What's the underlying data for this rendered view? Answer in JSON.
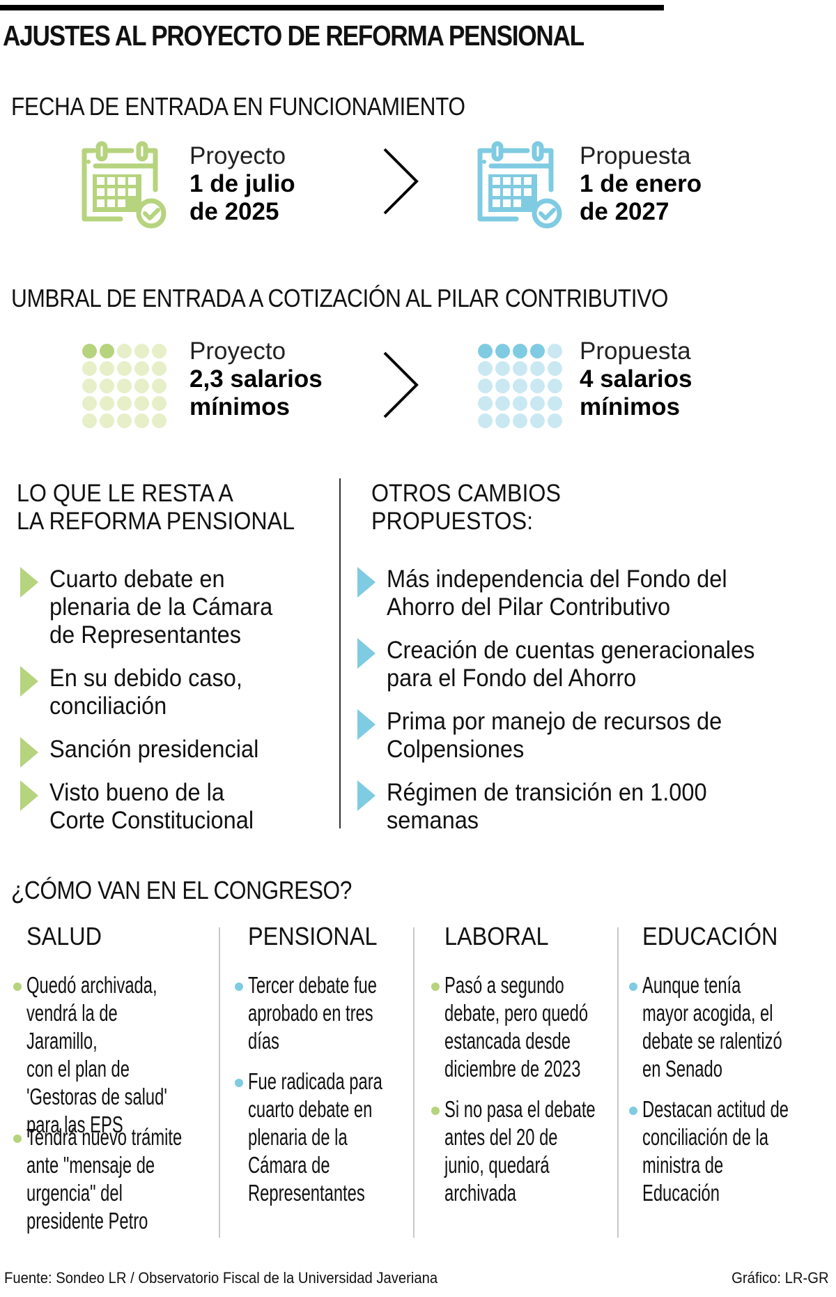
{
  "title": "AJUSTES AL PROYECTO DE REFORMA PENSIONAL",
  "colors": {
    "green": "#b6d37e",
    "green_light": "#e6efc8",
    "blue": "#7fcbe2",
    "blue_light": "#c9e8f2",
    "text": "#111111"
  },
  "fecha": {
    "heading": "FECHA DE ENTRADA EN FUNCIONAMIENTO",
    "proyecto": {
      "icon": "calendar-check-icon",
      "label": "Proyecto",
      "line1": "1 de julio",
      "line2": "de 2025"
    },
    "arrow_icon": "chevron-right-icon",
    "propuesta": {
      "icon": "calendar-check-icon",
      "label": "Propuesta",
      "line1": "1 de enero",
      "line2": "de 2027"
    }
  },
  "umbral": {
    "heading": "UMBRAL DE ENTRADA A COTIZACIÓN AL PILAR CONTRIBUTIVO",
    "proyecto": {
      "icon": "dot-grid-icon",
      "filled_dots": 2,
      "total_dots": 25,
      "label": "Proyecto",
      "line1": "2,3 salarios",
      "line2": "mínimos"
    },
    "propuesta": {
      "icon": "dot-grid-icon",
      "filled_dots": 4,
      "total_dots": 25,
      "label": "Propuesta",
      "line1": "4 salarios",
      "line2": "mínimos"
    }
  },
  "resta": {
    "heading_line1": "LO QUE LE RESTA A",
    "heading_line2": "LA REFORMA PENSIONAL",
    "items": [
      {
        "lines": [
          "Cuarto debate en",
          "plenaria de la Cámara",
          "de Representantes"
        ]
      },
      {
        "lines": [
          "En su debido caso,",
          "conciliación"
        ]
      },
      {
        "lines": [
          "Sanción presidencial"
        ]
      },
      {
        "lines": [
          "Visto bueno de la",
          "Corte Constitucional"
        ]
      }
    ]
  },
  "otros": {
    "heading_line1": "OTROS CAMBIOS",
    "heading_line2": "PROPUESTOS:",
    "items": [
      {
        "lines": [
          "Más independencia del Fondo del",
          "Ahorro del Pilar Contributivo"
        ]
      },
      {
        "lines": [
          "Creación de cuentas generacionales",
          "para el Fondo del Ahorro"
        ]
      },
      {
        "lines": [
          "Prima por manejo de recursos de",
          "Colpensiones"
        ]
      },
      {
        "lines": [
          "Régimen de transición en 1.000",
          "semanas"
        ]
      }
    ]
  },
  "congreso": {
    "heading": "¿CÓMO VAN EN EL CONGRESO?",
    "columns": [
      {
        "title": "SALUD",
        "bullet_color": "green",
        "items": [
          "Quedó archivada,\nvendrá la de Jaramillo,\ncon el plan de\n'Gestoras de salud'\npara las EPS",
          "Tendrá nuevo trámite\nante \"mensaje de\nurgencia\" del\npresidente Petro"
        ]
      },
      {
        "title": "PENSIONAL",
        "bullet_color": "blue",
        "items": [
          "Tercer debate fue\naprobado en tres\ndías",
          "Fue radicada para\ncuarto debate en\nplenaria de la\nCámara de\nRepresentantes"
        ]
      },
      {
        "title": "LABORAL",
        "bullet_color": "green",
        "items": [
          "Pasó a segundo\ndebate, pero quedó\nestancada desde\ndiciembre de 2023",
          "Si no pasa el debate\nantes del 20 de\njunio, quedará\narchivada"
        ]
      },
      {
        "title": "EDUCACIÓN",
        "bullet_color": "blue",
        "items": [
          "Aunque tenía\nmayor acogida, el\ndebate se ralentizó\nen Senado",
          "Destacan actitud de\nconciliación de la\nministra de\nEducación"
        ]
      }
    ]
  },
  "footer": {
    "source": "Fuente: Sondeo LR / Observatorio Fiscal de la Universidad Javeriana",
    "credit": "Gráfico: LR-GR"
  }
}
